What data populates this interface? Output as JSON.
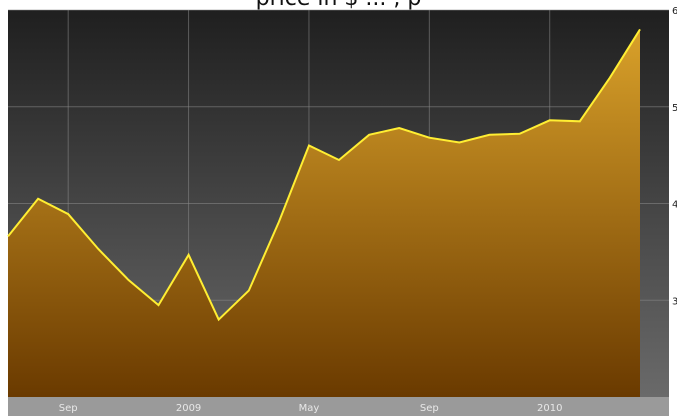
{
  "header": {
    "partial_text": "price in $ ... , p"
  },
  "chart_data": {
    "type": "area",
    "title": "",
    "xlabel": "",
    "ylabel": "",
    "x_ticks": [
      "Sep",
      "2009",
      "May",
      "Sep",
      "2010"
    ],
    "y_ticks": [
      "3",
      "4",
      "5",
      "6"
    ],
    "ylim": [
      2.0,
      6.0
    ],
    "grid": true,
    "x": [
      "2008-07",
      "2008-08",
      "2008-09",
      "2008-10",
      "2008-11",
      "2008-12",
      "2009-01",
      "2009-02",
      "2009-03",
      "2009-04",
      "2009-05",
      "2009-06",
      "2009-07",
      "2009-08",
      "2009-09",
      "2009-10",
      "2009-11",
      "2009-12",
      "2010-01",
      "2010-02",
      "2010-03",
      "2010-04"
    ],
    "series": [
      {
        "values": [
          3.66,
          4.05,
          3.89,
          3.53,
          3.21,
          2.95,
          3.47,
          2.8,
          3.1,
          3.81,
          4.6,
          4.45,
          4.71,
          4.78,
          4.68,
          4.63,
          4.71,
          4.72,
          4.86,
          4.85,
          5.3,
          5.8
        ]
      }
    ],
    "colors": {
      "plot_bg_top": "#1f1f1f",
      "plot_bg_bottom": "#6a6a6a",
      "area_top": "#d9a12a",
      "area_bottom": "#6a3a00",
      "line": "#ffee33",
      "axis_band": "#9a9a9a"
    }
  }
}
